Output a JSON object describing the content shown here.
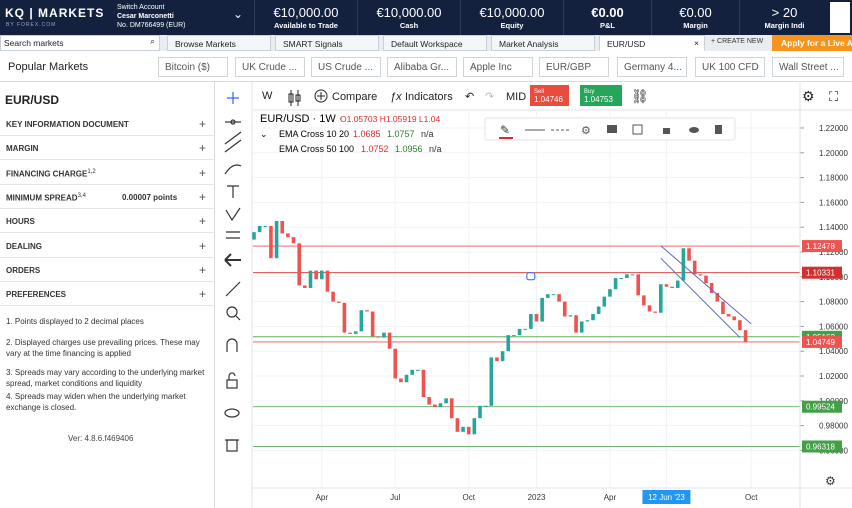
{
  "header": {
    "logo": "KQ | MARKETS",
    "logo_sub": "BY FOREX.COM",
    "account": {
      "switch": "Switch Account",
      "name": "Cesar Marconetti",
      "number": "No. DM766499 (EUR)"
    },
    "stats": [
      {
        "value": "€10,000.00",
        "label": "Available to Trade"
      },
      {
        "value": "€10,000.00",
        "label": "Cash"
      },
      {
        "value": "€10,000.00",
        "label": "Equity"
      },
      {
        "value": "€0.00",
        "label": "P&L"
      },
      {
        "value": "€0.00",
        "label": "Margin"
      },
      {
        "value": "> 20",
        "label": "Margin Indi"
      }
    ]
  },
  "search": "Search markets",
  "tabs": [
    "Browse Markets",
    "SMART Signals",
    "Default Workspace",
    "Market Analysis",
    "EUR/USD"
  ],
  "create_new": "+ CREATE NEW",
  "apply": "Apply for a Live A",
  "popular": {
    "title": "Popular Markets",
    "markets": [
      "Bitcoin ($)",
      "UK Crude ...",
      "US Crude ...",
      "Alibaba Gr...",
      "Apple Inc",
      "EUR/GBP",
      "Germany 4...",
      "UK 100 CFD",
      "Wall Street ..."
    ]
  },
  "panel": {
    "title": "EUR/USD",
    "sections": [
      {
        "label": "KEY INFORMATION DOCUMENT"
      },
      {
        "label": "MARGIN"
      },
      {
        "label": "FINANCING CHARGE",
        "sup": "1,2"
      },
      {
        "label": "MINIMUM SPREAD",
        "sup": "3,4",
        "value": "0.00007 points"
      },
      {
        "label": "HOURS"
      },
      {
        "label": "DEALING"
      },
      {
        "label": "ORDERS"
      },
      {
        "label": "PREFERENCES"
      }
    ],
    "notes": [
      "1. Points displayed to 2 decimal places",
      "2. Displayed charges use prevailing prices. These may vary at the time financing is applied",
      "3. Spreads may vary according to the underlying market spread, market conditions and liquidity",
      "4. Spreads may widen when the underlying market exchange is closed."
    ],
    "version": "Ver: 4.8.6.f469406"
  },
  "chart": {
    "toolbar": {
      "interval": "W",
      "compare": "Compare",
      "indicators": "Indicators",
      "price_type": "MID",
      "sell": {
        "label": "Sell",
        "price": "1.04746"
      },
      "buy": {
        "label": "Buy",
        "price": "1.04753"
      }
    },
    "legend": {
      "symbol": "EUR/USD · 1W ·",
      "ohlc": "O1.05703 H1.05919 L1.04",
      "studies": [
        {
          "name": "EMA Cross 10 20",
          "values": [
            "1.0685",
            "1.0757",
            "n/a"
          ]
        },
        {
          "name": "EMA Cross 50 100",
          "values": [
            "1.0752",
            "1.0956",
            "n/a"
          ]
        }
      ]
    },
    "ylim": [
      0.9297,
      1.2345
    ],
    "yticks": [
      {
        "value": 1.22,
        "label": "1.22000"
      },
      {
        "value": 1.2,
        "label": "1.20000"
      },
      {
        "value": 1.18,
        "label": "1.18000"
      },
      {
        "value": 1.16,
        "label": "1.16000"
      },
      {
        "value": 1.14,
        "label": "1.14000"
      },
      {
        "value": 1.12,
        "label": "1.12000"
      },
      {
        "value": 1.1,
        "label": "1.10000"
      },
      {
        "value": 1.08,
        "label": "1.08000"
      },
      {
        "value": 1.06,
        "label": "1.06000"
      },
      {
        "value": 1.04,
        "label": "1.04000"
      },
      {
        "value": 1.02,
        "label": "1.02000"
      },
      {
        "value": 1,
        "label": "1.00000"
      },
      {
        "value": 0.98,
        "label": "0.98000"
      },
      {
        "value": 0.96,
        "label": "0.96000"
      }
    ],
    "levels": [
      {
        "value": 1.12478,
        "label": "1.12478",
        "color": "#ef5350"
      },
      {
        "value": 1.10331,
        "label": "1.10331",
        "color": "#d32f2f"
      },
      {
        "value": 1.05162,
        "label": "1.05162",
        "color": "#43a047"
      },
      {
        "value": 1.04749,
        "label": "1.04749",
        "color": "#ef5350"
      },
      {
        "value": 0.99524,
        "label": "0.99524",
        "color": "#43a047"
      },
      {
        "value": 0.96318,
        "label": "0.96318",
        "color": "#43a047"
      }
    ],
    "candles": {
      "open": 1.13,
      "closes": [
        1.136,
        1.141,
        1.141,
        1.115,
        1.145,
        1.135,
        1.132,
        1.127,
        1.093,
        1.091,
        1.105,
        1.098,
        1.105,
        1.088,
        1.08,
        1.079,
        1.055,
        1.054,
        1.056,
        1.073,
        1.072,
        1.052,
        1.051,
        1.055,
        1.042,
        1.018,
        1.015,
        1.021,
        1.025,
        1.025,
        1.003,
        0.997,
        0.995,
        0.998,
        1.002,
        0.986,
        0.975,
        0.979,
        0.973,
        0.986,
        0.996,
        0.996,
        1.035,
        1.032,
        1.04,
        1.053,
        1.053,
        1.058,
        1.058,
        1.07,
        1.064,
        1.083,
        1.086,
        1.086,
        1.08,
        1.068,
        1.069,
        1.055,
        1.064,
        1.065,
        1.07,
        1.076,
        1.084,
        1.09,
        1.099,
        1.099,
        1.102,
        1.102,
        1.085,
        1.077,
        1.072,
        1.071,
        1.094,
        1.092,
        1.091,
        1.097,
        1.123,
        1.113,
        1.102,
        1.101,
        1.095,
        1.087,
        1.08,
        1.07,
        1.068,
        1.065,
        1.057,
        1.0475
      ]
    },
    "xticks": [
      {
        "value": 12,
        "label": "Apr"
      },
      {
        "value": 25,
        "label": "Jul"
      },
      {
        "value": 38,
        "label": "Oct"
      },
      {
        "value": 50,
        "label": "2023"
      },
      {
        "value": 63,
        "label": "Apr"
      },
      {
        "value": 73,
        "label": "12 Jun '23"
      },
      {
        "value": 88,
        "label": "Oct"
      }
    ]
  }
}
